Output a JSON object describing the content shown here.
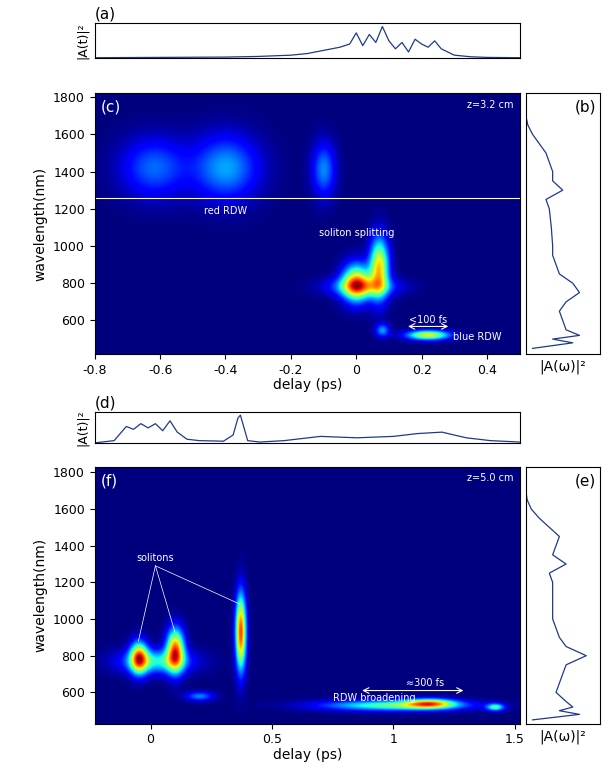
{
  "chart_data": [
    {
      "type": "line",
      "label": "(a)",
      "ylabel": "|A(t)|²",
      "tick_labels": false,
      "color": "#1f3a8a",
      "xlim": [
        -0.8,
        0.5
      ],
      "ylim": [
        0,
        1.1
      ],
      "x": [
        -0.8,
        -0.6,
        -0.4,
        -0.3,
        -0.2,
        -0.15,
        -0.1,
        -0.05,
        -0.02,
        0.0,
        0.02,
        0.04,
        0.06,
        0.08,
        0.1,
        0.12,
        0.14,
        0.16,
        0.18,
        0.2,
        0.22,
        0.24,
        0.26,
        0.28,
        0.3,
        0.35,
        0.4,
        0.5
      ],
      "values": [
        0.02,
        0.03,
        0.04,
        0.06,
        0.1,
        0.15,
        0.25,
        0.35,
        0.45,
        0.8,
        0.4,
        0.75,
        0.5,
        1.0,
        0.55,
        0.3,
        0.5,
        0.2,
        0.6,
        0.45,
        0.35,
        0.55,
        0.3,
        0.2,
        0.1,
        0.05,
        0.03,
        0.02
      ]
    },
    {
      "type": "heatmap",
      "label": "(c)",
      "subtitle": "z=3.2 cm",
      "xlabel": "delay (ps)",
      "ylabel": "wavelength(nm)",
      "xlim": [
        -0.8,
        0.5
      ],
      "ylim": [
        420,
        1820
      ],
      "xticks": [
        -0.8,
        -0.6,
        -0.4,
        -0.2,
        0,
        0.2,
        0.4
      ],
      "yticks": [
        600,
        800,
        1000,
        1200,
        1400,
        1600,
        1800
      ],
      "hline": 1260,
      "blobs": [
        {
          "delay": -0.62,
          "wavelength": 1420,
          "delay_width": 0.07,
          "wavelength_width": 110,
          "intensity": 0.33
        },
        {
          "delay": -0.4,
          "wavelength": 1420,
          "delay_width": 0.07,
          "wavelength_width": 120,
          "intensity": 0.42
        },
        {
          "delay": -0.1,
          "wavelength": 1410,
          "delay_width": 0.025,
          "wavelength_width": 100,
          "intensity": 0.38
        },
        {
          "delay": 0.0,
          "wavelength": 800,
          "delay_width": 0.03,
          "wavelength_width": 70,
          "intensity": 1.0
        },
        {
          "delay": 0.07,
          "wavelength": 880,
          "delay_width": 0.02,
          "wavelength_width": 110,
          "intensity": 1.0
        },
        {
          "delay": 0.02,
          "wavelength": 780,
          "delay_width": 0.07,
          "wavelength_width": 35,
          "intensity": 0.5
        },
        {
          "delay": 0.22,
          "wavelength": 520,
          "delay_width": 0.045,
          "wavelength_width": 18,
          "intensity": 0.9
        },
        {
          "delay": 0.08,
          "wavelength": 545,
          "delay_width": 0.015,
          "wavelength_width": 25,
          "intensity": 0.4
        }
      ],
      "annotations": [
        {
          "text": "red RDW",
          "x": -0.4,
          "y": 1190
        },
        {
          "text": "soliton splitting",
          "x": 0.0,
          "y": 1070
        },
        {
          "text": "<100 fs",
          "x": 0.22,
          "y": 600,
          "span": [
            0.15,
            0.29,
            568
          ]
        },
        {
          "text": "blue RDW",
          "x": 0.37,
          "y": 510
        }
      ]
    },
    {
      "type": "line",
      "orientation": "horizontal",
      "label": "(b)",
      "xlabel": "|A(ω)|²",
      "tick_labels": false,
      "color": "#1f3a8a",
      "xlim": [
        0,
        1.1
      ],
      "ylim": [
        420,
        1820
      ],
      "x": [
        450,
        480,
        500,
        520,
        550,
        600,
        650,
        700,
        750,
        800,
        850,
        900,
        950,
        1000,
        1100,
        1200,
        1250,
        1300,
        1350,
        1400,
        1450,
        1500,
        1550,
        1600,
        1650,
        1700
      ],
      "values": [
        0.1,
        0.7,
        0.4,
        0.8,
        0.6,
        0.55,
        0.5,
        0.6,
        0.8,
        0.7,
        0.5,
        0.45,
        0.4,
        0.4,
        0.38,
        0.35,
        0.3,
        0.55,
        0.4,
        0.4,
        0.35,
        0.3,
        0.2,
        0.1,
        0.03,
        0.0
      ]
    },
    {
      "type": "line",
      "label": "(d)",
      "ylabel": "|A(t)|²",
      "tick_labels": false,
      "color": "#1f3a8a",
      "xlim": [
        -0.23,
        1.52
      ],
      "ylim": [
        0,
        1.1
      ],
      "x": [
        -0.23,
        -0.15,
        -0.1,
        -0.07,
        -0.04,
        -0.01,
        0.02,
        0.05,
        0.08,
        0.11,
        0.15,
        0.2,
        0.3,
        0.34,
        0.36,
        0.37,
        0.38,
        0.4,
        0.45,
        0.55,
        0.7,
        0.85,
        1.0,
        1.1,
        1.2,
        1.3,
        1.4,
        1.52
      ],
      "values": [
        0.02,
        0.1,
        0.6,
        0.5,
        0.7,
        0.55,
        0.7,
        0.45,
        0.8,
        0.4,
        0.15,
        0.1,
        0.08,
        0.3,
        0.9,
        1.0,
        0.7,
        0.1,
        0.05,
        0.1,
        0.25,
        0.2,
        0.25,
        0.35,
        0.4,
        0.2,
        0.1,
        0.05
      ]
    },
    {
      "type": "heatmap",
      "label": "(f)",
      "subtitle": "z=5.0 cm",
      "xlabel": "delay (ps)",
      "ylabel": "wavelength(nm)",
      "xlim": [
        -0.23,
        1.52
      ],
      "ylim": [
        430,
        1830
      ],
      "xticks": [
        0,
        0.5,
        1,
        1.5
      ],
      "yticks": [
        600,
        800,
        1000,
        1200,
        1400,
        1600,
        1800
      ],
      "blobs": [
        {
          "delay": -0.05,
          "wavelength": 790,
          "delay_width": 0.025,
          "wavelength_width": 60,
          "intensity": 0.85
        },
        {
          "delay": 0.1,
          "wavelength": 830,
          "delay_width": 0.025,
          "wavelength_width": 80,
          "intensity": 0.95
        },
        {
          "delay": 0.37,
          "wavelength": 930,
          "delay_width": 0.015,
          "wavelength_width": 140,
          "intensity": 1.0
        },
        {
          "delay": 0.02,
          "wavelength": 770,
          "delay_width": 0.1,
          "wavelength_width": 45,
          "intensity": 0.45
        },
        {
          "delay": 1.0,
          "wavelength": 530,
          "delay_width": 0.2,
          "wavelength_width": 20,
          "intensity": 0.55
        },
        {
          "delay": 1.15,
          "wavelength": 540,
          "delay_width": 0.07,
          "wavelength_width": 18,
          "intensity": 0.7
        },
        {
          "delay": 1.42,
          "wavelength": 520,
          "delay_width": 0.025,
          "wavelength_width": 14,
          "intensity": 0.5
        },
        {
          "delay": 0.2,
          "wavelength": 580,
          "delay_width": 0.04,
          "wavelength_width": 18,
          "intensity": 0.3
        }
      ],
      "annotations": [
        {
          "text": "solitons",
          "x": 0.02,
          "y": 1330,
          "points": [
            [
              -0.05,
              880
            ],
            [
              0.1,
              930
            ],
            [
              0.37,
              1080
            ]
          ]
        },
        {
          "text": "RDW broadening",
          "x": 0.92,
          "y": 570
        },
        {
          "text": "≈300 fs",
          "x": 1.13,
          "y": 650,
          "span": [
            0.86,
            1.3,
            610
          ]
        }
      ]
    },
    {
      "type": "line",
      "orientation": "horizontal",
      "label": "(e)",
      "xlabel": "|A(ω)|²",
      "tick_labels": false,
      "color": "#1f3a8a",
      "xlim": [
        0,
        1.1
      ],
      "ylim": [
        430,
        1830
      ],
      "x": [
        450,
        480,
        500,
        520,
        550,
        600,
        650,
        700,
        750,
        800,
        850,
        900,
        950,
        1000,
        1100,
        1200,
        1250,
        1300,
        1350,
        1400,
        1450,
        1500,
        1550,
        1600,
        1650,
        1700
      ],
      "values": [
        0.1,
        0.8,
        0.5,
        0.7,
        0.6,
        0.45,
        0.5,
        0.55,
        0.6,
        0.9,
        0.6,
        0.5,
        0.45,
        0.4,
        0.4,
        0.4,
        0.35,
        0.6,
        0.4,
        0.45,
        0.5,
        0.35,
        0.2,
        0.08,
        0.02,
        0.0
      ]
    }
  ]
}
